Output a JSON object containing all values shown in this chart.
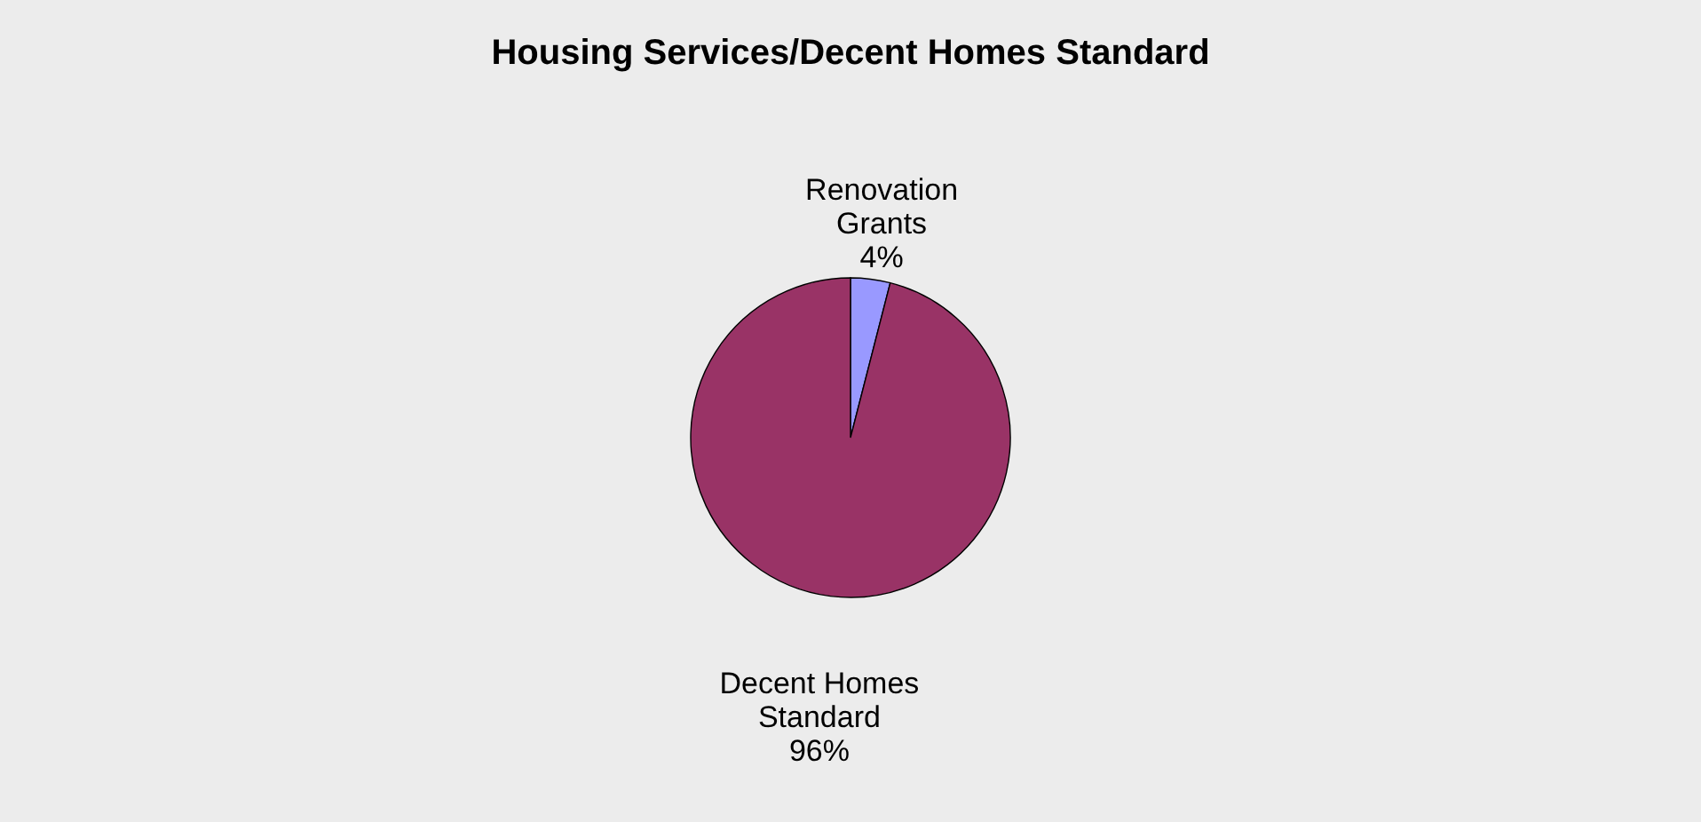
{
  "chart_data": {
    "type": "pie",
    "title": "Housing Services/Decent Homes Standard",
    "categories": [
      "Renovation Grants",
      "Decent Homes Standard"
    ],
    "values": [
      4,
      96
    ],
    "colors": [
      "#9999ff",
      "#993366"
    ],
    "value_labels": [
      "4%",
      "96%"
    ],
    "legend": false
  }
}
